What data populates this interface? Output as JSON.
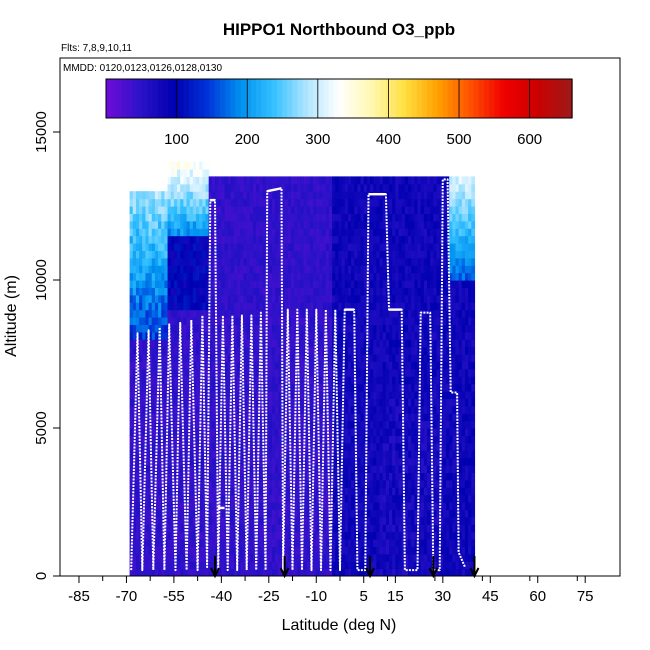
{
  "chart_data": {
    "type": "heatmap",
    "title": "HIPPO1 Northbound O3_ppb",
    "subtitle_flights": "Flts: 7,8,9,10,11",
    "subtitle_dates": "MMDD: 0120,0123,0126,0128,0130",
    "xlabel": "Latitude (deg N)",
    "ylabel": "Altitude (m)",
    "xlim": [
      -91,
      86
    ],
    "ylim": [
      0,
      17500
    ],
    "x_ticks": [
      -85,
      -70,
      -55,
      -40,
      -25,
      -10,
      5,
      15,
      30,
      45,
      60,
      75
    ],
    "y_ticks": [
      0,
      5000,
      10000,
      15000
    ],
    "colorbar": {
      "range": [
        0,
        660
      ],
      "ticks": [
        100,
        200,
        300,
        400,
        500,
        600
      ],
      "colors": [
        "#6a0dd8",
        "#2a12c8",
        "#0000b0",
        "#0033d8",
        "#0090f0",
        "#33c0ff",
        "#aee4ff",
        "#ffffff",
        "#fff8b0",
        "#ffe040",
        "#ffa000",
        "#ff5000",
        "#f00000",
        "#cc0000",
        "#a01818"
      ]
    },
    "marker_latitudes": [
      -42,
      -20,
      7,
      27,
      40
    ],
    "flight_track_color": "#ffffff",
    "grid": false,
    "legend": "colorbar-top"
  }
}
